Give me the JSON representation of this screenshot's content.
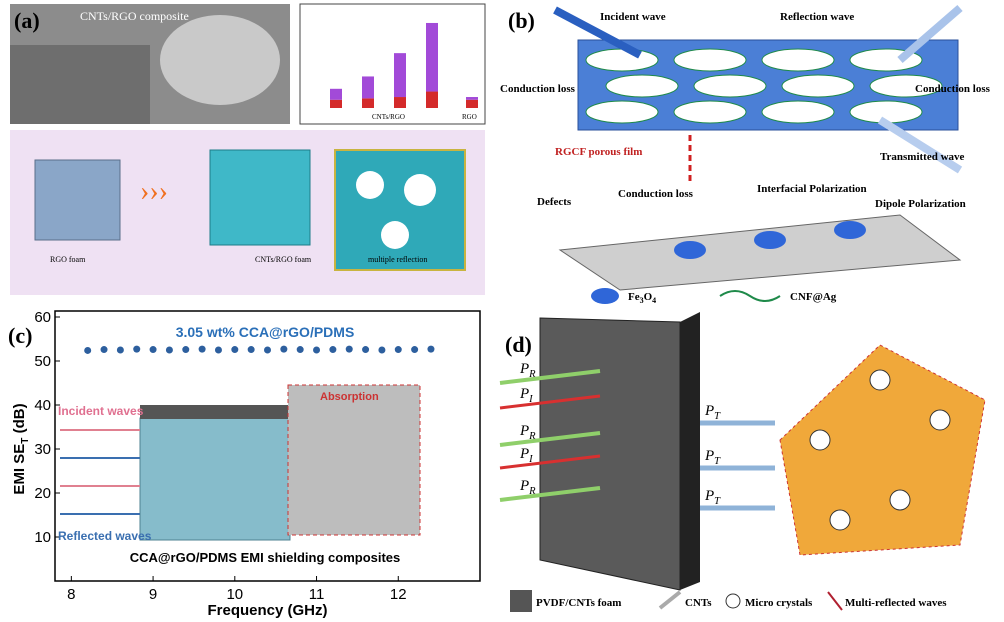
{
  "panels": {
    "a": {
      "label": "(a)",
      "sem_caption": "CNTs/RGO composite",
      "foam_left": "RGO foam",
      "foam_mid": "CNTs/RGO foam",
      "zoom": "multiple reflection",
      "inset_chart": {
        "type": "bar",
        "groups": [
          "CNTs/RGO",
          "RGO"
        ],
        "ylim": [
          0,
          35
        ],
        "series": [
          {
            "color": "#d42a2a",
            "values": [
              3,
              3.5,
              4,
              6,
              3
            ]
          },
          {
            "color": "#a24ad8",
            "values": [
              4,
              8,
              16,
              25,
              1
            ]
          }
        ]
      }
    },
    "b": {
      "label": "(b)",
      "incident": "Incident wave",
      "reflection": "Reflection wave",
      "loss_left": "Conduction loss",
      "loss_right": "Conduction loss",
      "film": "RGCF porous film",
      "transmitted": "Transmitted wave",
      "defects": "Defects",
      "loss_mid": "Conduction loss",
      "interfacial": "Interfacial Polarization",
      "dipole": "Dipole Polarization",
      "legend_fe": {
        "main": "Fe",
        "sub1": "3",
        "mid": "O",
        "sub2": "4"
      },
      "legend_cnf": "CNF@Ag"
    },
    "c": {
      "label": "(c)",
      "incident": "Incident waves",
      "reflected": "Reflected waves",
      "absorption": "Absorption",
      "caption": "CCA@rGO/PDMS EMI shielding composites",
      "chart_data": {
        "type": "scatter",
        "series_label": "3.05 wt% CCA@rGO/PDMS",
        "color": "#2d5f9e",
        "x_label": "Frequency (GHz)",
        "y_label": {
          "main": "EMI SE",
          "sub": "T",
          "tail": " (dB)"
        },
        "x": [
          8.2,
          8.4,
          8.6,
          8.8,
          9.0,
          9.2,
          9.4,
          9.6,
          9.8,
          10.0,
          10.2,
          10.4,
          10.6,
          10.8,
          11.0,
          11.2,
          11.4,
          11.6,
          11.8,
          12.0,
          12.2,
          12.4
        ],
        "values": [
          52.4,
          52.6,
          52.5,
          52.7,
          52.6,
          52.5,
          52.6,
          52.7,
          52.5,
          52.6,
          52.6,
          52.5,
          52.7,
          52.6,
          52.5,
          52.6,
          52.7,
          52.6,
          52.5,
          52.6,
          52.6,
          52.7
        ],
        "xlim": [
          7.8,
          13
        ],
        "ylim": [
          0,
          60
        ],
        "xticks": [
          8,
          9,
          10,
          11,
          12
        ],
        "yticks": [
          10,
          20,
          30,
          40,
          50,
          60
        ]
      }
    },
    "d": {
      "label": "(d)",
      "arrows": [
        {
          "main": "P",
          "sub": "R"
        },
        {
          "main": "P",
          "sub": "I"
        },
        {
          "main": "P",
          "sub": "R"
        },
        {
          "main": "P",
          "sub": "I"
        },
        {
          "main": "P",
          "sub": "R"
        }
      ],
      "transmitted": [
        {
          "main": "P",
          "sub": "T"
        },
        {
          "main": "P",
          "sub": "T"
        },
        {
          "main": "P",
          "sub": "T"
        }
      ],
      "legend": [
        "PVDF/CNTs foam",
        "CNTs",
        "Micro crystals",
        "Multi-reflected waves"
      ]
    }
  }
}
